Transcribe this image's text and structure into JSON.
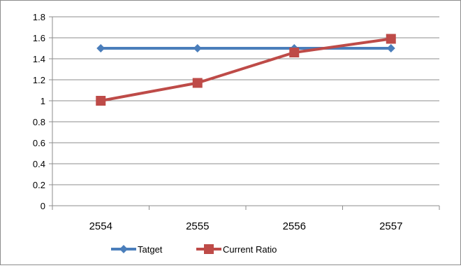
{
  "chart_data": {
    "type": "line",
    "title": "",
    "xlabel": "",
    "ylabel": "",
    "categories": [
      "2554",
      "2555",
      "2556",
      "2557"
    ],
    "ylim": [
      0,
      1.8
    ],
    "yticks": [
      "0",
      "0.2",
      "0.4",
      "0.6",
      "0.8",
      "1",
      "1.2",
      "1.4",
      "1.6",
      "1.8"
    ],
    "grid": "horizontal",
    "legend_position": "bottom",
    "series": [
      {
        "name": "Tatget",
        "values": [
          1.5,
          1.5,
          1.5,
          1.5
        ],
        "color": "#4a7ebb",
        "marker": "diamond"
      },
      {
        "name": "Current Ratio",
        "values": [
          1.0,
          1.17,
          1.46,
          1.59
        ],
        "color": "#be4b48",
        "marker": "square"
      }
    ]
  }
}
